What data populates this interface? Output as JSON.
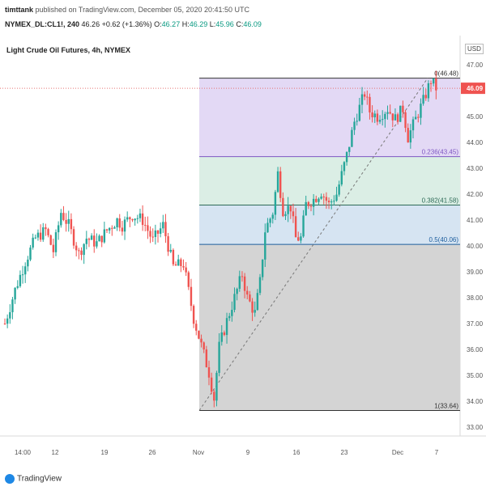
{
  "header": {
    "author": "timttank",
    "published": "published on TradingView.com, December 05, 2020 20:41:50 UTC",
    "symbol": "NYMEX_DL:CL1!, 240",
    "last": "46.26",
    "change": "+0.62 (+1.36%)",
    "o_label": "O:",
    "o_value": "46.27",
    "h_label": "H:",
    "h_value": "46.29",
    "l_label": "L:",
    "l_value": "45.96",
    "c_label": "C:",
    "c_value": "46.09"
  },
  "chart": {
    "title": "Light Crude Oil Futures, 4h, NYMEX",
    "currency": "USD",
    "price_badge": "46.09",
    "brand": "TradingView"
  },
  "chart_data": {
    "type": "candlestick",
    "title": "Light Crude Oil Futures, 4h, NYMEX",
    "ylabel": "USD",
    "ylim": [
      32.5,
      47.5
    ],
    "y_ticks": [
      "33.00",
      "34.00",
      "35.00",
      "36.00",
      "37.00",
      "38.00",
      "39.00",
      "40.00",
      "41.00",
      "42.00",
      "43.00",
      "44.00",
      "45.00",
      "46.00",
      "47.00"
    ],
    "x_ticks": [
      "14:00",
      "12",
      "19",
      "26",
      "Nov",
      "9",
      "16",
      "23",
      "Dec",
      "7"
    ],
    "last_price": 46.09,
    "fib_levels": [
      {
        "ratio": "0",
        "price": 46.48,
        "label": "0(46.48)"
      },
      {
        "ratio": "0.236",
        "price": 43.45,
        "label": "0.236(43.45)"
      },
      {
        "ratio": "0.382",
        "price": 41.58,
        "label": "0.382(41.58)"
      },
      {
        "ratio": "0.5",
        "price": 40.06,
        "label": "0.5(40.06)"
      },
      {
        "ratio": "1",
        "price": 33.64,
        "label": "1(33.64)"
      }
    ],
    "path": [
      {
        "t": 0,
        "p": 37.0
      },
      {
        "t": 2,
        "p": 38.3
      },
      {
        "t": 4,
        "p": 39.4
      },
      {
        "t": 6,
        "p": 40.3
      },
      {
        "t": 8,
        "p": 40.6
      },
      {
        "t": 9.5,
        "p": 39.8
      },
      {
        "t": 11,
        "p": 41.3
      },
      {
        "t": 12.5,
        "p": 40.8
      },
      {
        "t": 14.5,
        "p": 39.7
      },
      {
        "t": 16,
        "p": 40.3
      },
      {
        "t": 18,
        "p": 40.1
      },
      {
        "t": 20,
        "p": 40.6
      },
      {
        "t": 22,
        "p": 41.0
      },
      {
        "t": 23,
        "p": 40.8
      },
      {
        "t": 25,
        "p": 41.2
      },
      {
        "t": 27,
        "p": 41.0
      },
      {
        "t": 29,
        "p": 40.2
      },
      {
        "t": 31,
        "p": 40.8
      },
      {
        "t": 33,
        "p": 39.2
      },
      {
        "t": 35,
        "p": 39.3
      },
      {
        "t": 37,
        "p": 37.2
      },
      {
        "t": 39,
        "p": 35.8
      },
      {
        "t": 40,
        "p": 35.1
      },
      {
        "t": 41,
        "p": 34.1
      },
      {
        "t": 42,
        "p": 36.1
      },
      {
        "t": 43.5,
        "p": 37.1
      },
      {
        "t": 45,
        "p": 38.0
      },
      {
        "t": 46.5,
        "p": 38.9
      },
      {
        "t": 47.5,
        "p": 38.0
      },
      {
        "t": 49,
        "p": 37.4
      },
      {
        "t": 50,
        "p": 38.6
      },
      {
        "t": 51,
        "p": 40.6
      },
      {
        "t": 52.5,
        "p": 41.3
      },
      {
        "t": 53.5,
        "p": 42.8
      },
      {
        "t": 54.5,
        "p": 41.4
      },
      {
        "t": 56,
        "p": 41.5
      },
      {
        "t": 57,
        "p": 40.3
      },
      {
        "t": 58,
        "p": 40.3
      },
      {
        "t": 59,
        "p": 41.6
      },
      {
        "t": 60.5,
        "p": 41.8
      },
      {
        "t": 62,
        "p": 42.1
      },
      {
        "t": 63.5,
        "p": 41.6
      },
      {
        "t": 65,
        "p": 42.0
      },
      {
        "t": 67,
        "p": 43.5
      },
      {
        "t": 68.5,
        "p": 44.8
      },
      {
        "t": 70.5,
        "p": 45.9
      },
      {
        "t": 71.5,
        "p": 45.2
      },
      {
        "t": 73,
        "p": 45.0
      },
      {
        "t": 75,
        "p": 45.3
      },
      {
        "t": 76.5,
        "p": 44.9
      },
      {
        "t": 78,
        "p": 45.3
      },
      {
        "t": 79,
        "p": 44.2
      },
      {
        "t": 80.5,
        "p": 44.9
      },
      {
        "t": 82,
        "p": 45.6
      },
      {
        "t": 83.5,
        "p": 46.4
      },
      {
        "t": 84.5,
        "p": 46.1
      }
    ]
  }
}
